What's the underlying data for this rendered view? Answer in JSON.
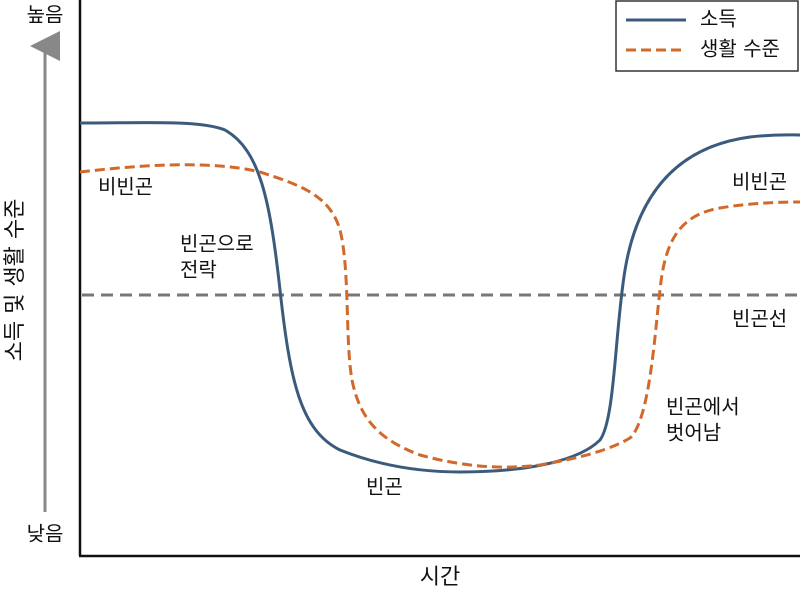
{
  "axis": {
    "y_label": "소득 및 생활 수준",
    "y_high": "높음",
    "y_low": "낮음",
    "x_label": "시간"
  },
  "legend": {
    "items": [
      "소득",
      "생활 수준"
    ]
  },
  "annotations": {
    "non_poor_left": "비빈곤",
    "fall_into_poverty": [
      "빈곤으로",
      "전락"
    ],
    "non_poor_right": "비빈곤",
    "poverty_line": "빈곤선",
    "poverty": "빈곤",
    "escape_poverty": [
      "빈곤에서",
      "벗어남"
    ]
  }
}
